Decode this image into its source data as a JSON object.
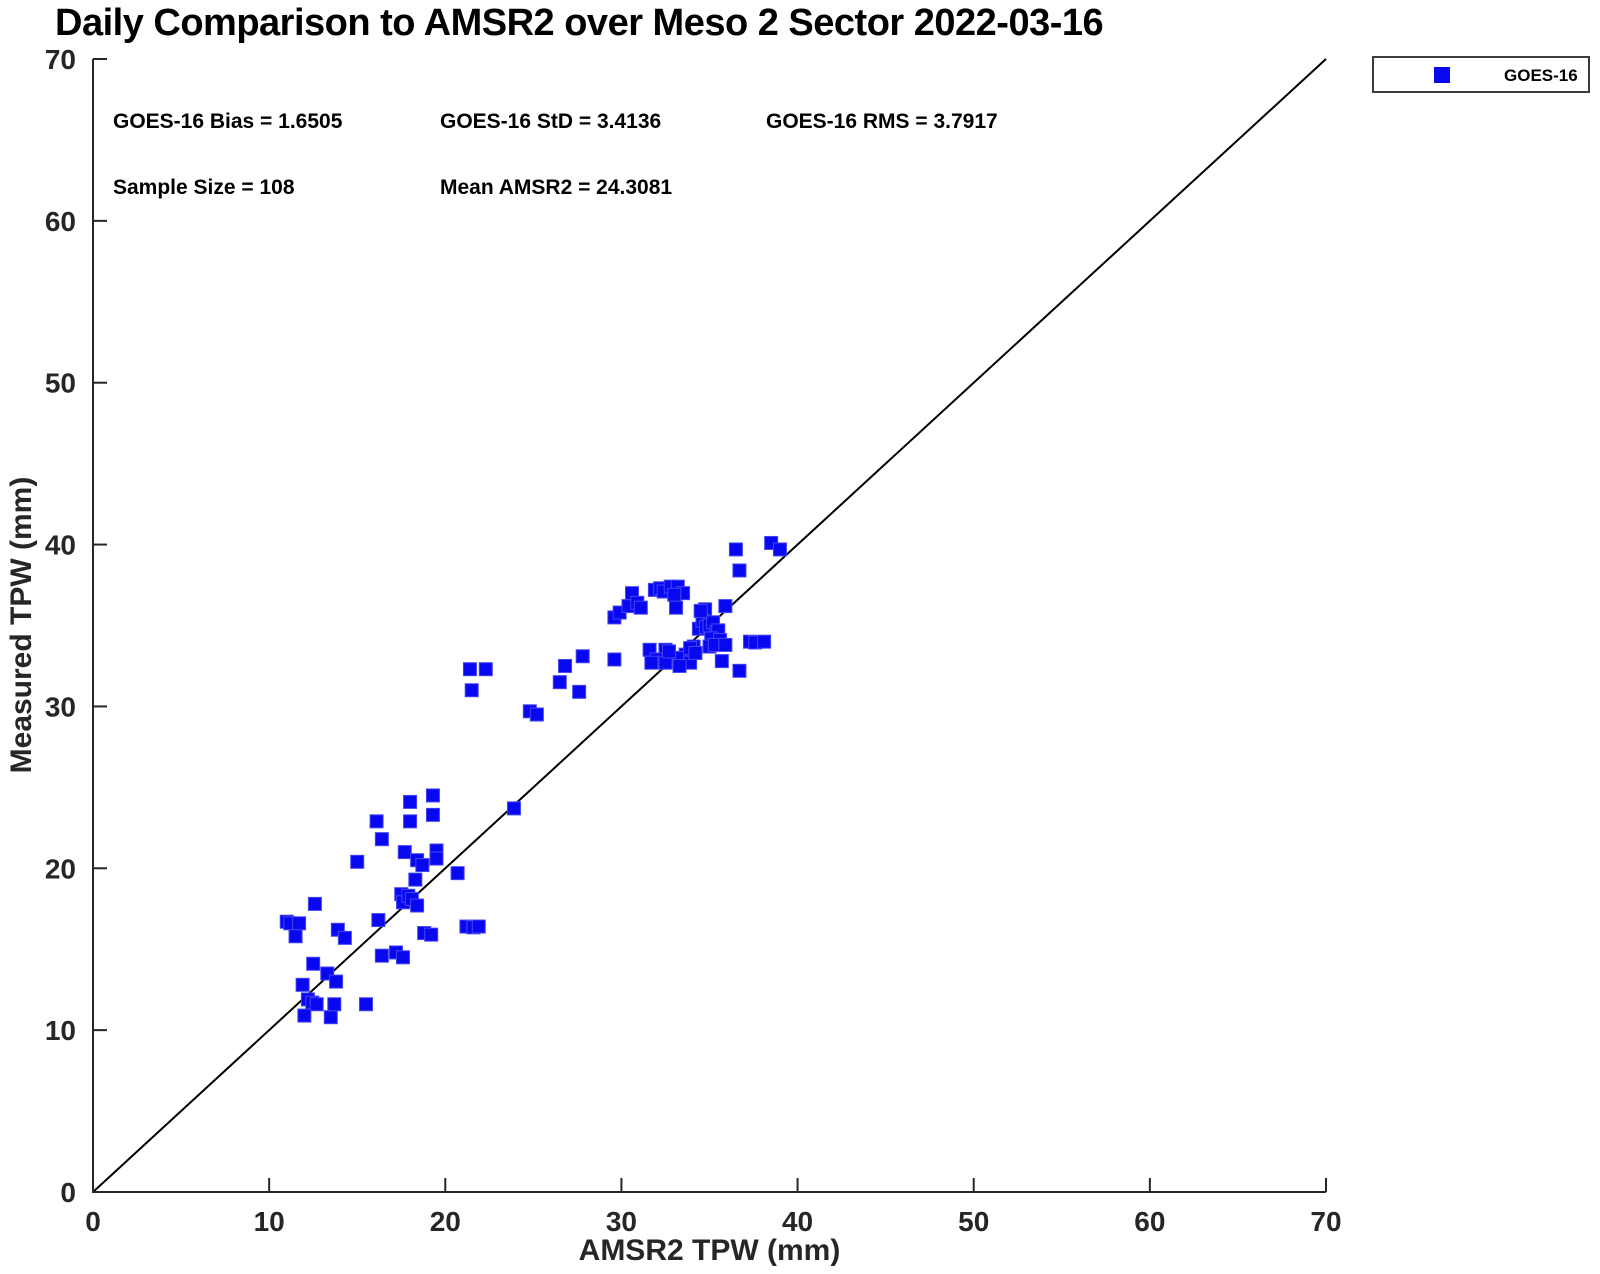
{
  "stats": {
    "bias": "GOES-16 Bias = 1.6505",
    "std": "GOES-16 StD = 3.4136",
    "rms": "GOES-16 RMS = 3.7917",
    "sample_size": "Sample Size = 108",
    "mean_amsr2": "Mean AMSR2 = 24.3081"
  },
  "legend": {
    "position": "top-right-outside",
    "entries": [
      {
        "label": "GOES-16",
        "marker": "filled-square",
        "color": "#0707f0"
      }
    ]
  },
  "chart_data": {
    "type": "scatter",
    "title": "Daily Comparison to AMSR2 over Meso 2 Sector 2022-03-16",
    "xlabel": "AMSR2 TPW (mm)",
    "ylabel": "Measured TPW (mm)",
    "xlim": [
      0,
      70
    ],
    "ylim": [
      0,
      70
    ],
    "x_ticks": [
      0,
      10,
      20,
      30,
      40,
      50,
      60,
      70
    ],
    "y_ticks": [
      0,
      10,
      20,
      30,
      40,
      50,
      60,
      70
    ],
    "grid": false,
    "axis_color": "#262626",
    "identity_line": {
      "from": [
        0,
        0
      ],
      "to": [
        70,
        70
      ],
      "color": "#000000"
    },
    "series": [
      {
        "name": "GOES-16",
        "marker": "square",
        "marker_size_px": 13,
        "color": "#0707f0",
        "points": [
          [
            11.0,
            16.7
          ],
          [
            11.2,
            16.6
          ],
          [
            11.7,
            16.6
          ],
          [
            11.5,
            15.8
          ],
          [
            12.6,
            17.8
          ],
          [
            12.5,
            14.1
          ],
          [
            11.9,
            12.8
          ],
          [
            12.2,
            11.9
          ],
          [
            12.45,
            11.7
          ],
          [
            12.7,
            11.6
          ],
          [
            12.0,
            10.9
          ],
          [
            13.5,
            10.8
          ],
          [
            13.3,
            13.5
          ],
          [
            13.8,
            13.0
          ],
          [
            13.7,
            11.6
          ],
          [
            13.9,
            16.2
          ],
          [
            14.3,
            15.7
          ],
          [
            15.5,
            11.6
          ],
          [
            15.0,
            20.4
          ],
          [
            16.2,
            16.8
          ],
          [
            16.4,
            14.6
          ],
          [
            17.2,
            14.8
          ],
          [
            17.6,
            14.5
          ],
          [
            16.1,
            22.9
          ],
          [
            16.4,
            21.8
          ],
          [
            17.5,
            18.4
          ],
          [
            17.6,
            17.9
          ],
          [
            17.9,
            18.3
          ],
          [
            18.1,
            18.1
          ],
          [
            18.4,
            17.7
          ],
          [
            18.0,
            24.1
          ],
          [
            19.3,
            24.5
          ],
          [
            19.3,
            23.3
          ],
          [
            18.0,
            22.9
          ],
          [
            17.7,
            21.0
          ],
          [
            18.4,
            20.5
          ],
          [
            18.7,
            20.2
          ],
          [
            19.5,
            21.1
          ],
          [
            19.5,
            20.6
          ],
          [
            18.3,
            19.3
          ],
          [
            20.7,
            19.7
          ],
          [
            18.8,
            16.0
          ],
          [
            19.2,
            15.9
          ],
          [
            21.2,
            16.4
          ],
          [
            21.6,
            16.35
          ],
          [
            21.9,
            16.4
          ],
          [
            23.9,
            23.7
          ],
          [
            21.4,
            32.3
          ],
          [
            22.3,
            32.3
          ],
          [
            21.5,
            31.0
          ],
          [
            24.8,
            29.7
          ],
          [
            25.2,
            29.5
          ],
          [
            26.5,
            31.5
          ],
          [
            26.8,
            32.5
          ],
          [
            27.6,
            30.9
          ],
          [
            27.8,
            33.1
          ],
          [
            29.6,
            32.9
          ],
          [
            29.6,
            35.5
          ],
          [
            29.9,
            35.8
          ],
          [
            30.4,
            36.2
          ],
          [
            30.6,
            37.0
          ],
          [
            30.9,
            36.4
          ],
          [
            31.1,
            36.1
          ],
          [
            31.9,
            37.2
          ],
          [
            32.2,
            37.3
          ],
          [
            32.4,
            37.1
          ],
          [
            32.8,
            37.4
          ],
          [
            33.2,
            37.4
          ],
          [
            33.5,
            37.0
          ],
          [
            33.0,
            36.9
          ],
          [
            33.1,
            36.1
          ],
          [
            35.9,
            36.2
          ],
          [
            34.75,
            36.0
          ],
          [
            34.4,
            34.8
          ],
          [
            34.6,
            35.3
          ],
          [
            34.8,
            34.9
          ],
          [
            35.0,
            35.0
          ],
          [
            35.2,
            35.2
          ],
          [
            35.4,
            34.6
          ],
          [
            35.5,
            34.7
          ],
          [
            35.1,
            34.2
          ],
          [
            35.6,
            34.1
          ],
          [
            34.1,
            33.7
          ],
          [
            35.0,
            33.7
          ],
          [
            35.3,
            33.8
          ],
          [
            35.9,
            33.8
          ],
          [
            33.65,
            33.2
          ],
          [
            33.3,
            33.0
          ],
          [
            33.9,
            32.7
          ],
          [
            35.7,
            32.8
          ],
          [
            36.7,
            32.2
          ],
          [
            37.3,
            34.0
          ],
          [
            37.6,
            33.95
          ],
          [
            38.1,
            34.0
          ],
          [
            36.5,
            39.7
          ],
          [
            38.5,
            40.1
          ],
          [
            39.0,
            39.7
          ],
          [
            36.7,
            38.4
          ],
          [
            31.6,
            33.5
          ],
          [
            32.5,
            33.5
          ],
          [
            32.0,
            32.9
          ],
          [
            31.7,
            32.7
          ],
          [
            32.5,
            32.7
          ],
          [
            33.3,
            32.5
          ],
          [
            33.9,
            33.6
          ],
          [
            34.2,
            33.3
          ],
          [
            32.7,
            33.4
          ],
          [
            34.5,
            35.9
          ]
        ]
      }
    ]
  }
}
